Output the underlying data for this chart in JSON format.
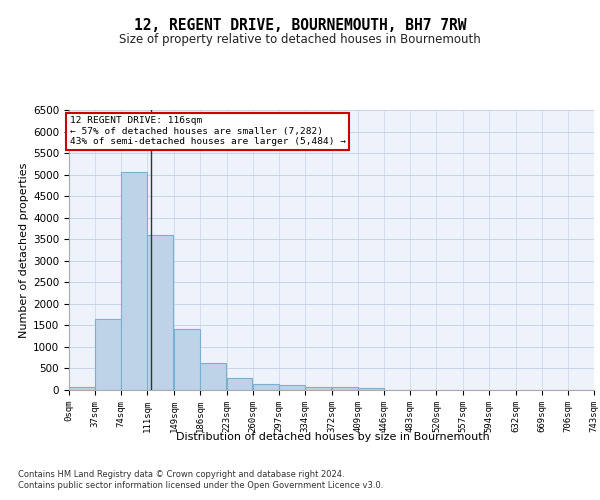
{
  "title": "12, REGENT DRIVE, BOURNEMOUTH, BH7 7RW",
  "subtitle": "Size of property relative to detached houses in Bournemouth",
  "xlabel": "Distribution of detached houses by size in Bournemouth",
  "ylabel": "Number of detached properties",
  "bin_edges": [
    0,
    37,
    74,
    111,
    149,
    186,
    223,
    260,
    297,
    334,
    372,
    409,
    446,
    483,
    520,
    557,
    594,
    632,
    669,
    706,
    743
  ],
  "bar_values": [
    80,
    1650,
    5050,
    3600,
    1420,
    620,
    290,
    140,
    110,
    75,
    60,
    50,
    0,
    0,
    0,
    0,
    0,
    0,
    0,
    0
  ],
  "bar_color": "#bed3e8",
  "bar_edgecolor": "#7aafd4",
  "bar_linewidth": 0.8,
  "property_value": 116,
  "vline_color": "#333333",
  "annotation_line1": "12 REGENT DRIVE: 116sqm",
  "annotation_line2": "← 57% of detached houses are smaller (7,282)",
  "annotation_line3": "43% of semi-detached houses are larger (5,484) →",
  "annotation_box_color": "#cc0000",
  "ylim": [
    0,
    6500
  ],
  "yticks": [
    0,
    500,
    1000,
    1500,
    2000,
    2500,
    3000,
    3500,
    4000,
    4500,
    5000,
    5500,
    6000,
    6500
  ],
  "grid_color": "#c8d4e8",
  "bg_color": "#edf2fb",
  "title_fontsize": 10.5,
  "subtitle_fontsize": 8.5,
  "tick_fontsize": 6.5,
  "ylabel_fontsize": 8,
  "xlabel_fontsize": 8,
  "footer_line1": "Contains HM Land Registry data © Crown copyright and database right 2024.",
  "footer_line2": "Contains public sector information licensed under the Open Government Licence v3.0."
}
